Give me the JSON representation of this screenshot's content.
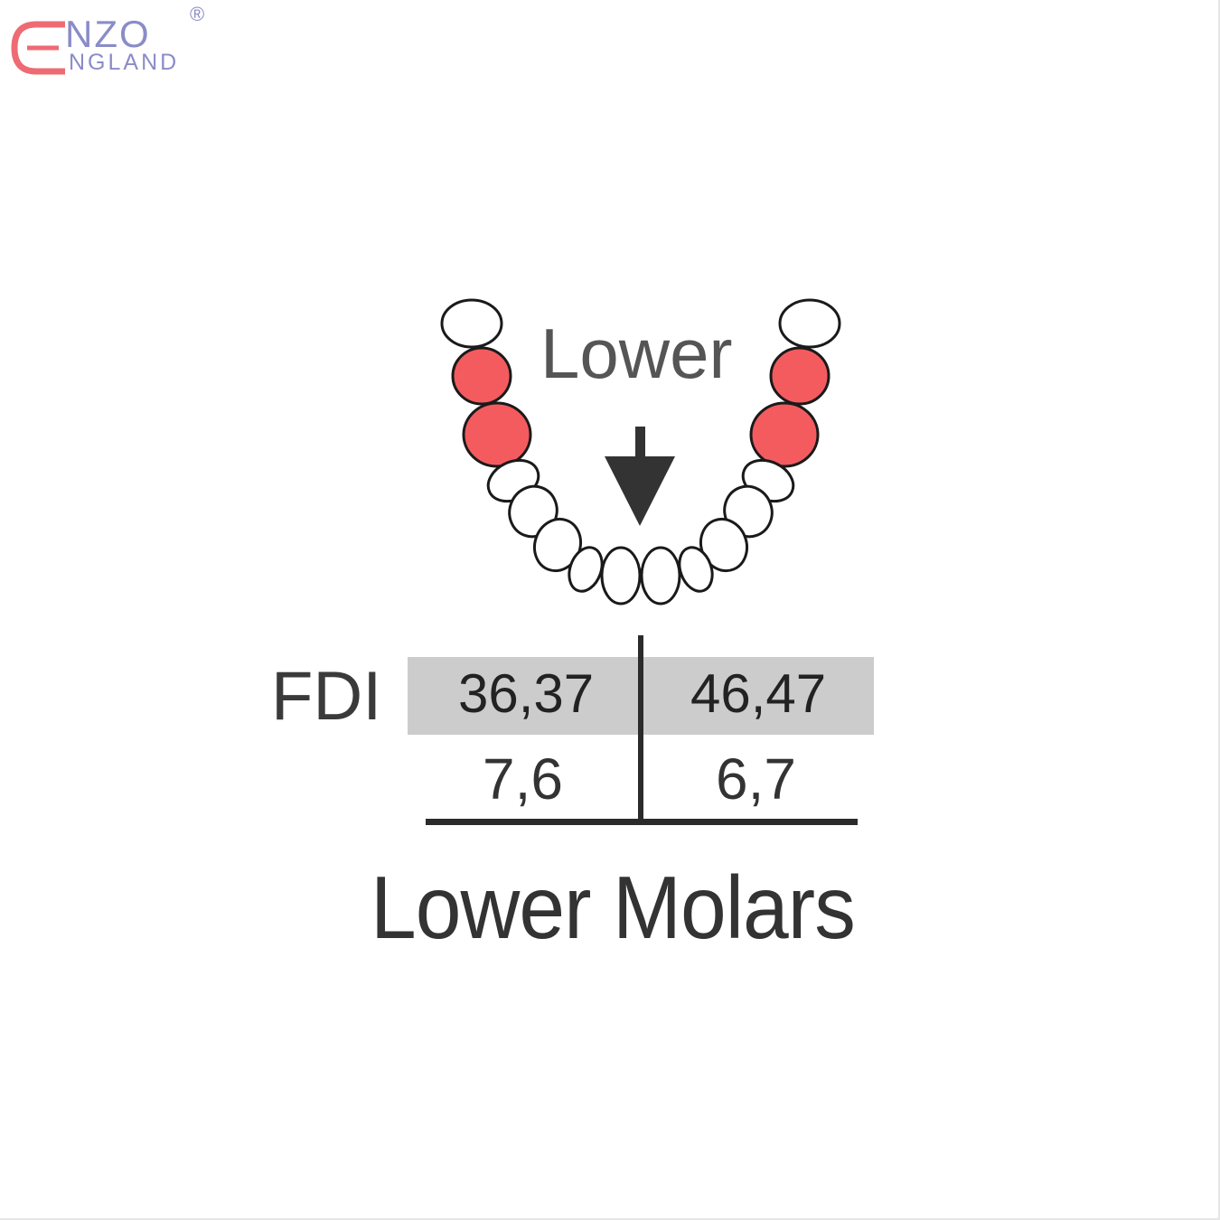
{
  "logo": {
    "text": "ENZO ENGLAND",
    "mark": "®",
    "colors": {
      "e": "#ee6b73",
      "letters": "#8a8cc8"
    }
  },
  "diagram": {
    "arch_label": "Lower",
    "arrow_icon": "down-arrow-icon",
    "highlight_color": "#f45b5f",
    "highlighted_teeth": [
      "left-6",
      "left-7",
      "right-6",
      "right-7"
    ],
    "system_label": "FDI",
    "fdi_left": "36,37",
    "fdi_right": "46,47",
    "palmer_left": "7,6",
    "palmer_right": "6,7",
    "band_color": "#cccccc",
    "caption": "Lower Molars"
  }
}
